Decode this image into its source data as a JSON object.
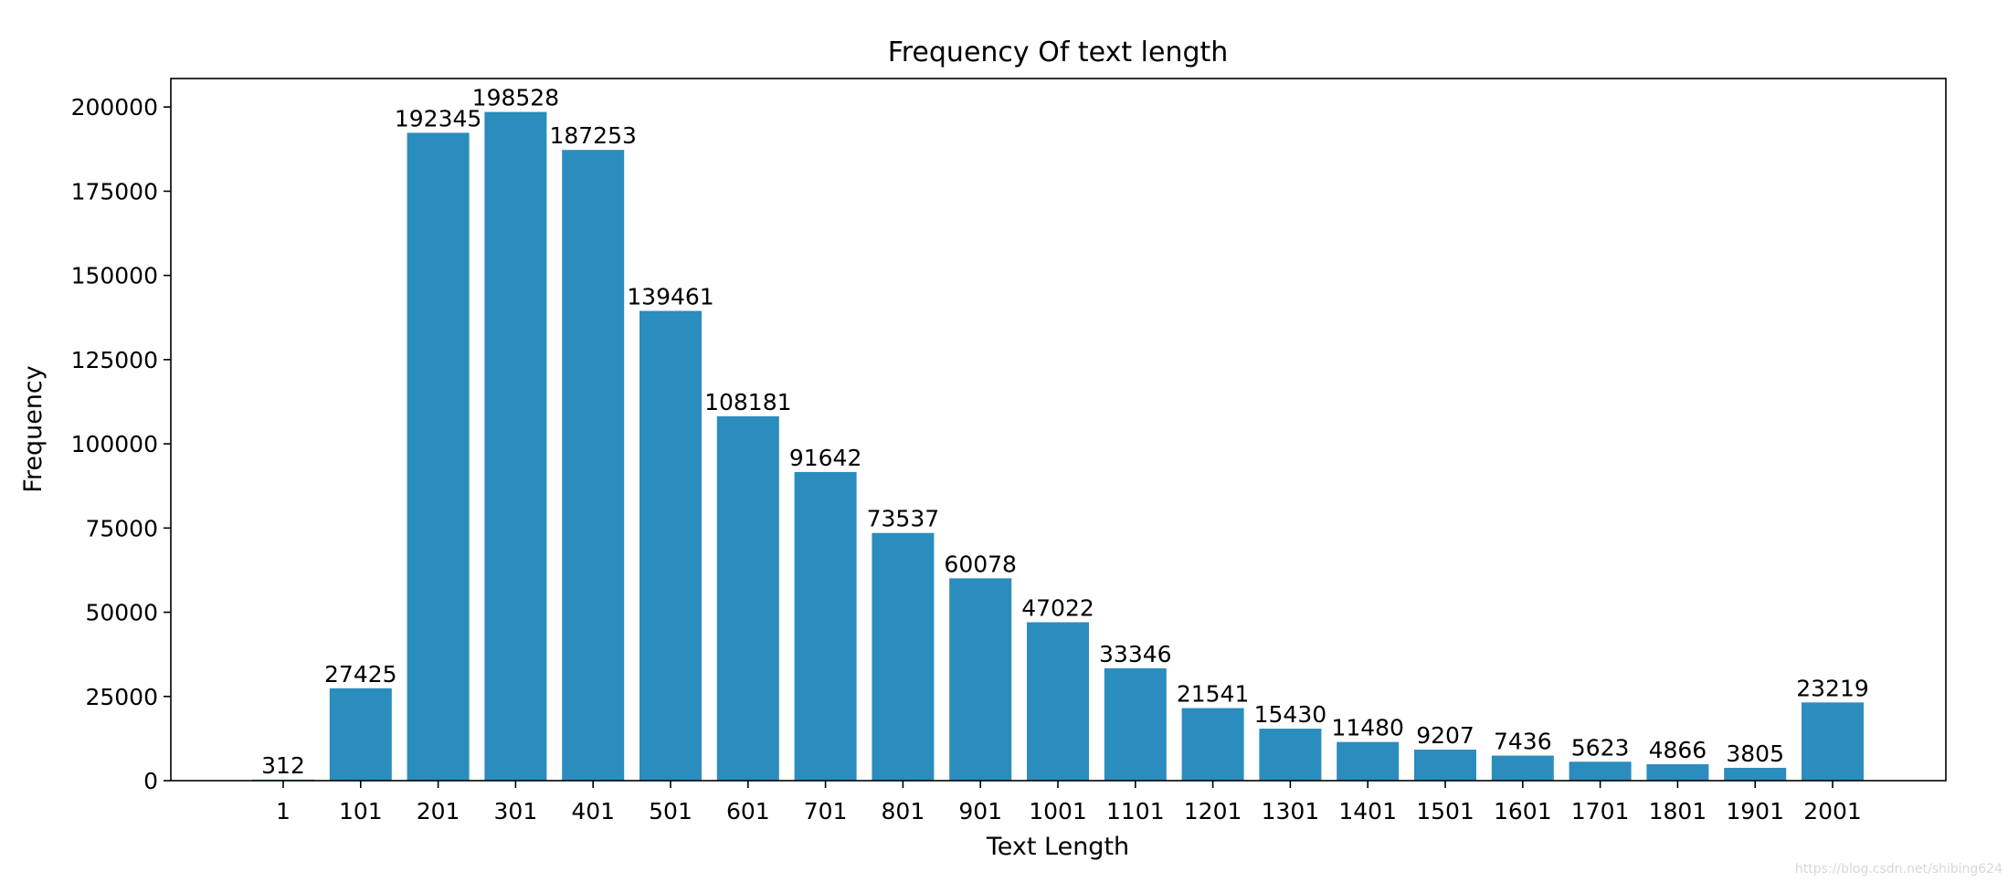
{
  "chart_data": {
    "type": "bar",
    "title": "Frequency Of text length",
    "xlabel": "Text Length",
    "ylabel": "Frequency",
    "categories": [
      "1",
      "101",
      "201",
      "301",
      "401",
      "501",
      "601",
      "701",
      "801",
      "901",
      "1001",
      "1101",
      "1201",
      "1301",
      "1401",
      "1501",
      "1601",
      "1701",
      "1801",
      "1901",
      "2001"
    ],
    "values": [
      312,
      27425,
      192345,
      198528,
      187253,
      139461,
      108181,
      91642,
      73537,
      60078,
      47022,
      33346,
      21541,
      15430,
      11480,
      9207,
      7436,
      5623,
      4866,
      3805,
      23219
    ],
    "data_labels": [
      "312",
      "27425",
      "192345",
      "198528",
      "187253",
      "139461",
      "108181",
      "91642",
      "73537",
      "60078",
      "47022",
      "33346",
      "21541",
      "15430",
      "11480",
      "9207",
      "7436",
      "5623",
      "4866",
      "3805",
      "23219"
    ],
    "ylim": [
      0,
      208455
    ],
    "yticks": [
      0,
      25000,
      50000,
      75000,
      100000,
      125000,
      150000,
      175000,
      200000
    ],
    "ytick_labels": [
      "0",
      "25000",
      "50000",
      "75000",
      "100000",
      "125000",
      "150000",
      "175000",
      "200000"
    ],
    "bar_color": "#2b8cbe",
    "grid": false,
    "legend": "none"
  },
  "watermark": "https://blog.csdn.net/shibing624"
}
